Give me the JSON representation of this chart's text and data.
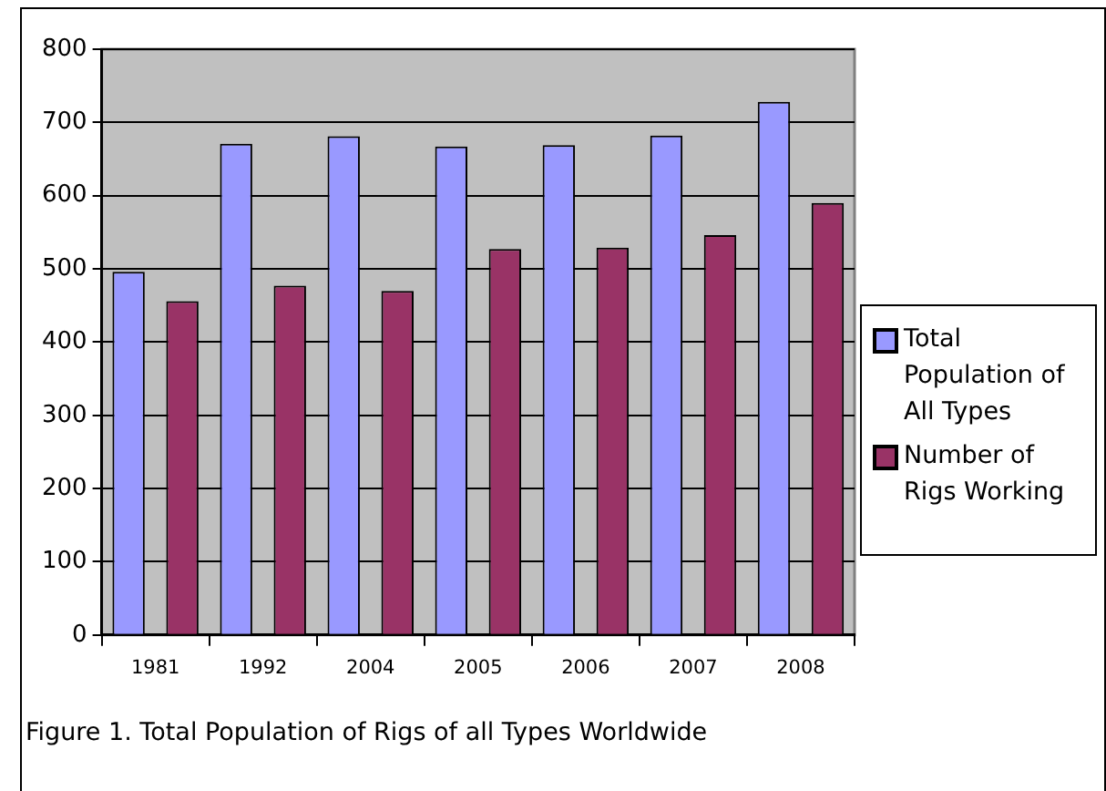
{
  "chart_data": {
    "type": "bar",
    "categories": [
      "1981",
      "1992",
      "2004",
      "2005",
      "2006",
      "2007",
      "2008"
    ],
    "series": [
      {
        "name": "Total Population of All Types",
        "color": "#9999ff",
        "values": [
          496,
          671,
          681,
          667,
          669,
          682,
          728
        ]
      },
      {
        "name": "Number of Rigs Working",
        "color": "#993366",
        "values": [
          456,
          477,
          470,
          527,
          529,
          546,
          590
        ]
      }
    ],
    "ylim": [
      0,
      800
    ],
    "yticks": [
      0,
      100,
      200,
      300,
      400,
      500,
      600,
      700,
      800
    ],
    "grid": "y",
    "legend": "right",
    "annotations": [
      "Figure 1. Total Population of Rigs of all Types Worldwide"
    ]
  }
}
